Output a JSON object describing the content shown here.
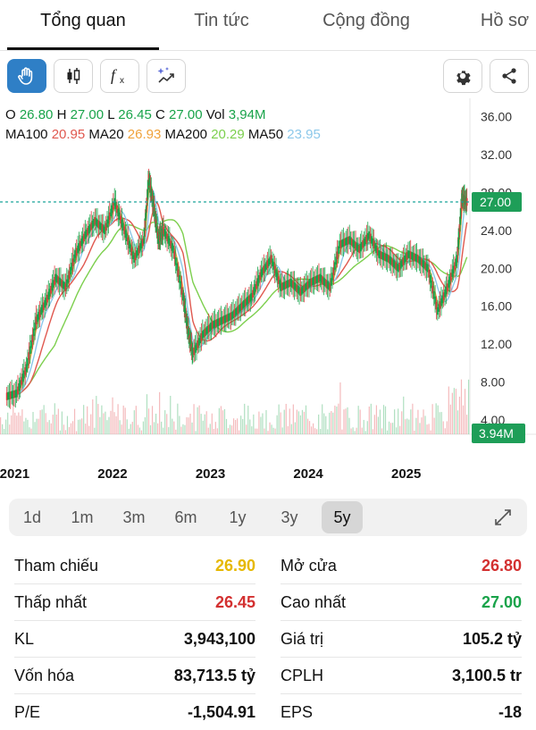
{
  "tabs": [
    "Tổng quan",
    "Tin tức",
    "Cộng đồng",
    "Hồ sơ"
  ],
  "ohlc": {
    "o_label": "O",
    "o": "26.80",
    "h_label": "H",
    "h": "27.00",
    "l_label": "L",
    "l": "26.45",
    "c_label": "C",
    "c": "27.00",
    "vol_label": "Vol",
    "vol": "3,94M"
  },
  "ma": {
    "ma100_label": "MA100",
    "ma100": "20.95",
    "ma20_label": "MA20",
    "ma20": "26.93",
    "ma200_label": "MA200",
    "ma200": "20.29",
    "ma50_label": "MA50",
    "ma50": "23.95"
  },
  "colors": {
    "up": "#19a34a",
    "down": "#e0393e",
    "ma100": "#e0584f",
    "ma20": "#f0a23a",
    "ma200": "#7ccf4d",
    "ma50": "#8cc8ea",
    "price_line": "#1aa59b",
    "ref": "#e6b800",
    "accent": "#2f7fc6"
  },
  "chart_data": {
    "type": "line",
    "y_ticks": [
      "36.00",
      "32.00",
      "28.00",
      "24.00",
      "20.00",
      "16.00",
      "12.00",
      "8.00",
      "4.00"
    ],
    "x_ticks": [
      "2021",
      "2022",
      "2023",
      "2024",
      "2025"
    ],
    "ylim": [
      2.5,
      36.8
    ],
    "last_price_label": "27.00",
    "last_volume_label": "3.94M",
    "series_close": {
      "x": [
        2021.0,
        2021.1,
        2021.2,
        2021.3,
        2021.4,
        2021.5,
        2021.6,
        2021.7,
        2021.8,
        2021.9,
        2022.0,
        2022.1,
        2022.2,
        2022.3,
        2022.4,
        2022.45,
        2022.5,
        2022.55,
        2022.6,
        2022.7,
        2022.8,
        2022.85,
        2022.9,
        2023.0,
        2023.1,
        2023.2,
        2023.3,
        2023.4,
        2023.5,
        2023.6,
        2023.7,
        2023.8,
        2023.9,
        2024.0,
        2024.1,
        2024.2,
        2024.3,
        2024.4,
        2024.5,
        2024.6,
        2024.7,
        2024.8,
        2024.9,
        2025.0,
        2025.1,
        2025.2,
        2025.3,
        2025.4,
        2025.5,
        2025.6,
        2025.65,
        2025.7
      ],
      "y": [
        6.5,
        6.8,
        9.5,
        14.5,
        16.5,
        19.0,
        18.0,
        21.5,
        23.5,
        25.0,
        24.0,
        27.0,
        24.0,
        21.0,
        23.0,
        29.5,
        26.5,
        23.0,
        24.0,
        22.0,
        17.0,
        13.5,
        11.0,
        13.0,
        14.0,
        14.5,
        15.0,
        16.0,
        17.0,
        19.5,
        21.0,
        18.0,
        18.5,
        17.5,
        18.5,
        19.0,
        18.0,
        22.5,
        23.0,
        22.0,
        23.5,
        21.5,
        21.0,
        20.0,
        21.5,
        21.0,
        20.0,
        15.5,
        18.0,
        21.0,
        27.5,
        27.0
      ]
    },
    "series_ma": [
      {
        "name": "MA20",
        "values_ref": "series_close",
        "value_last": 26.93
      },
      {
        "name": "MA50",
        "value_last": 23.95
      },
      {
        "name": "MA100",
        "value_last": 20.95
      },
      {
        "name": "MA200",
        "value_last": 20.29
      }
    ]
  },
  "range": {
    "options": [
      "1d",
      "1m",
      "3m",
      "6m",
      "1y",
      "3y",
      "5y"
    ],
    "selected": "5y"
  },
  "stats": {
    "ref_label": "Tham chiếu",
    "ref_value": "26.90",
    "open_label": "Mở cửa",
    "open_value": "26.80",
    "low_label": "Thấp nhất",
    "low_value": "26.45",
    "high_label": "Cao nhất",
    "high_value": "27.00",
    "kl_label": "KL",
    "kl_value": "3,943,100",
    "value_label": "Giá trị",
    "value_value": "105.2 tỷ",
    "cap_label": "Vốn hóa",
    "cap_value": "83,713.5 tỷ",
    "cplh_label": "CPLH",
    "cplh_value": "3,100.5 tr",
    "pe_label": "P/E",
    "pe_value": "-1,504.91",
    "eps_label": "EPS",
    "eps_value": "-18"
  }
}
